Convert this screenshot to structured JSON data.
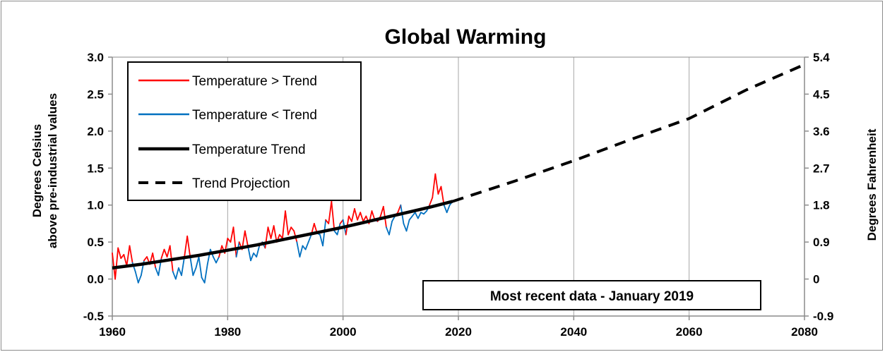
{
  "chart_data": {
    "type": "line",
    "title": "Global Warming",
    "ylabel_left_line1": "Degrees Celsius",
    "ylabel_left_line2": "above pre-industrial values",
    "ylabel_right": "Degrees Fahrenheit",
    "xlim": [
      1960,
      2080
    ],
    "ylim": [
      -0.5,
      3.0
    ],
    "x_ticks": [
      "1960",
      "1980",
      "2000",
      "2020",
      "2040",
      "2060",
      "2080"
    ],
    "x_tick_values": [
      1960,
      1980,
      2000,
      2020,
      2040,
      2060,
      2080
    ],
    "y_ticks_left": [
      "3.0",
      "2.5",
      "2.0",
      "1.5",
      "1.0",
      "0.5",
      "0.0",
      "-0.5"
    ],
    "y_tick_values_left": [
      3.0,
      2.5,
      2.0,
      1.5,
      1.0,
      0.5,
      0.0,
      -0.5
    ],
    "y_ticks_right": [
      "5.4",
      "4.5",
      "3.6",
      "2.7",
      "1.8",
      "0.9",
      "0",
      "-0.9"
    ],
    "grid": "vertical",
    "legend_position": "top-left",
    "annotation": "Most recent data - January 2019",
    "colors": {
      "above": "#ff0000",
      "below": "#0070c0",
      "trend": "#000000",
      "projection": "#000000"
    },
    "series": [
      {
        "name": "Temperature > Trend",
        "kind": "above"
      },
      {
        "name": "Temperature < Trend",
        "kind": "below"
      },
      {
        "name": "Temperature Trend",
        "kind": "trend",
        "x": [
          1960,
          1965,
          1970,
          1975,
          1980,
          1985,
          1990,
          1995,
          2000,
          2005,
          2010,
          2015,
          2019
        ],
        "y": [
          0.15,
          0.2,
          0.26,
          0.32,
          0.39,
          0.46,
          0.54,
          0.62,
          0.7,
          0.79,
          0.88,
          0.97,
          1.05
        ]
      },
      {
        "name": "Trend Projection",
        "kind": "projection",
        "x": [
          2019,
          2030,
          2040,
          2050,
          2060,
          2070,
          2080
        ],
        "y": [
          1.05,
          1.33,
          1.6,
          1.89,
          2.17,
          2.56,
          2.9
        ]
      }
    ],
    "monthly_temperature": {
      "x": [
        1960.0,
        1960.5,
        1961.0,
        1961.5,
        1962.0,
        1962.5,
        1963.0,
        1963.5,
        1964.0,
        1964.5,
        1965.0,
        1965.5,
        1966.0,
        1966.5,
        1967.0,
        1967.5,
        1968.0,
        1968.5,
        1969.0,
        1969.5,
        1970.0,
        1970.5,
        1971.0,
        1971.5,
        1972.0,
        1972.5,
        1973.0,
        1973.5,
        1974.0,
        1974.5,
        1975.0,
        1975.5,
        1976.0,
        1976.5,
        1977.0,
        1977.5,
        1978.0,
        1978.5,
        1979.0,
        1979.5,
        1980.0,
        1980.5,
        1981.0,
        1981.5,
        1982.0,
        1982.5,
        1983.0,
        1983.5,
        1984.0,
        1984.5,
        1985.0,
        1985.5,
        1986.0,
        1986.5,
        1987.0,
        1987.5,
        1988.0,
        1988.5,
        1989.0,
        1989.5,
        1990.0,
        1990.5,
        1991.0,
        1991.5,
        1992.0,
        1992.5,
        1993.0,
        1993.5,
        1994.0,
        1994.5,
        1995.0,
        1995.5,
        1996.0,
        1996.5,
        1997.0,
        1997.5,
        1998.0,
        1998.5,
        1999.0,
        1999.5,
        2000.0,
        2000.5,
        2001.0,
        2001.5,
        2002.0,
        2002.5,
        2003.0,
        2003.5,
        2004.0,
        2004.5,
        2005.0,
        2005.5,
        2006.0,
        2006.5,
        2007.0,
        2007.5,
        2008.0,
        2008.5,
        2009.0,
        2009.5,
        2010.0,
        2010.5,
        2011.0,
        2011.5,
        2012.0,
        2012.5,
        2013.0,
        2013.5,
        2014.0,
        2014.5,
        2015.0,
        2015.5,
        2016.0,
        2016.5,
        2017.0,
        2017.5,
        2018.0,
        2018.5,
        2019.0
      ],
      "y": [
        0.35,
        0.0,
        0.42,
        0.28,
        0.33,
        0.18,
        0.45,
        0.22,
        0.1,
        -0.05,
        0.05,
        0.25,
        0.3,
        0.2,
        0.35,
        0.15,
        0.05,
        0.28,
        0.4,
        0.3,
        0.45,
        0.1,
        0.0,
        0.15,
        0.05,
        0.3,
        0.58,
        0.3,
        0.05,
        0.15,
        0.3,
        0.02,
        -0.05,
        0.2,
        0.4,
        0.3,
        0.22,
        0.3,
        0.45,
        0.35,
        0.55,
        0.5,
        0.7,
        0.3,
        0.5,
        0.4,
        0.65,
        0.45,
        0.25,
        0.35,
        0.3,
        0.45,
        0.5,
        0.42,
        0.7,
        0.55,
        0.72,
        0.5,
        0.6,
        0.55,
        0.92,
        0.6,
        0.7,
        0.65,
        0.5,
        0.3,
        0.45,
        0.4,
        0.5,
        0.6,
        0.75,
        0.62,
        0.6,
        0.45,
        0.8,
        0.75,
        1.05,
        0.65,
        0.6,
        0.75,
        0.8,
        0.6,
        0.85,
        0.78,
        0.95,
        0.8,
        0.9,
        0.78,
        0.85,
        0.75,
        0.92,
        0.8,
        0.78,
        0.85,
        0.98,
        0.7,
        0.6,
        0.78,
        0.85,
        0.9,
        1.0,
        0.75,
        0.65,
        0.8,
        0.85,
        0.9,
        0.82,
        0.9,
        0.88,
        0.92,
        1.0,
        1.1,
        1.42,
        1.15,
        1.25,
        1.0,
        0.9,
        1.0,
        1.05
      ]
    }
  }
}
